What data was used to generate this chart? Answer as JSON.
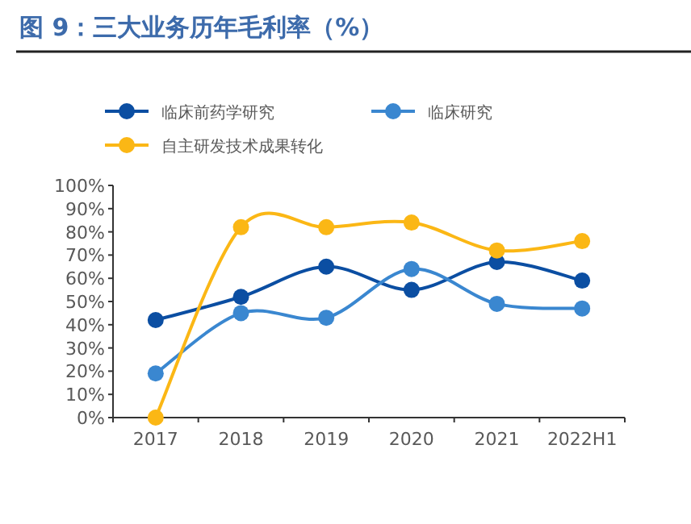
{
  "chart_data": {
    "type": "line",
    "title": "图 9：三大业务历年毛利率（%）",
    "categories": [
      "2017",
      "2018",
      "2019",
      "2020",
      "2021",
      "2022H1"
    ],
    "series": [
      {
        "name": "临床前药学研究",
        "color": "#0b4ea2",
        "values": [
          42,
          52,
          65,
          55,
          67,
          59
        ]
      },
      {
        "name": "临床研究",
        "color": "#3a87d0",
        "values": [
          19,
          45,
          43,
          64,
          49,
          47
        ]
      },
      {
        "name": "自主研发技术成果转化",
        "color": "#fbb715",
        "values": [
          0,
          82,
          82,
          84,
          72,
          76
        ]
      }
    ],
    "ylim": [
      0,
      100
    ],
    "yticks": [
      {
        "value": 0,
        "label": "0%"
      },
      {
        "value": 10,
        "label": "10%"
      },
      {
        "value": 20,
        "label": "20%"
      },
      {
        "value": 30,
        "label": "30%"
      },
      {
        "value": 40,
        "label": "40%"
      },
      {
        "value": 50,
        "label": "50%"
      },
      {
        "value": 60,
        "label": "60%"
      },
      {
        "value": 70,
        "label": "70%"
      },
      {
        "value": 80,
        "label": "80%"
      },
      {
        "value": 90,
        "label": "90%"
      },
      {
        "value": 100,
        "label": "100%"
      }
    ],
    "legend": "top",
    "marker": "circle"
  }
}
